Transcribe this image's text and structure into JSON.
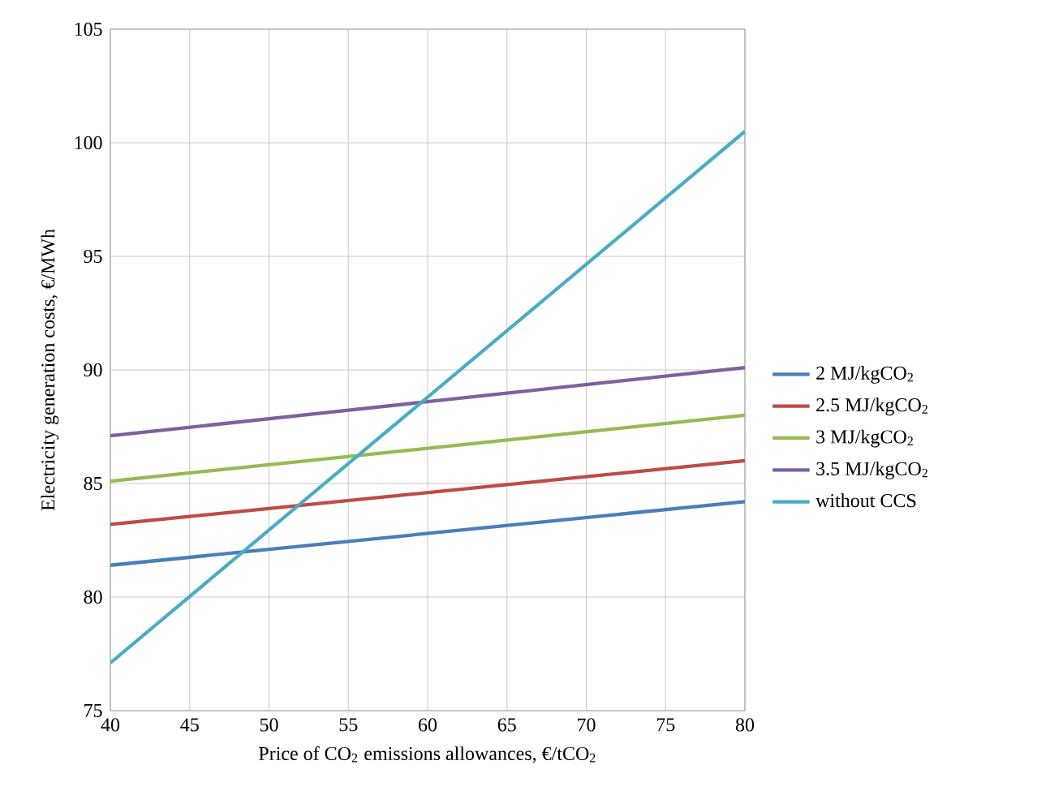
{
  "chart_data": {
    "type": "line",
    "xlabel": "Price of CO$_{2}$ emissions allowances, €/tCO$_{2}$",
    "ylabel": "Electricity generation costs, €/MWh",
    "x": [
      40,
      80
    ],
    "series": [
      {
        "name": "2 MJ/kgCO$_{2}$",
        "color": "#4a7ebb",
        "values": [
          81.4,
          84.2
        ]
      },
      {
        "name": "2.5 MJ/kgCO$_{2}$",
        "color": "#be4b48",
        "values": [
          83.2,
          86.0
        ]
      },
      {
        "name": "3 MJ/kgCO$_{2}$",
        "color": "#98b954",
        "values": [
          85.1,
          88.0
        ]
      },
      {
        "name": "3.5 MJ/kgCO$_{2}$",
        "color": "#7d60a0",
        "values": [
          87.1,
          90.1
        ]
      },
      {
        "name": "without CCS",
        "color": "#4bacc6",
        "values": [
          77.1,
          100.5
        ]
      }
    ],
    "xlim": [
      40,
      80
    ],
    "xticks": [
      40,
      45,
      50,
      55,
      60,
      65,
      70,
      75,
      80
    ],
    "ylim": [
      75,
      105
    ],
    "yticks": [
      75,
      80,
      85,
      90,
      95,
      100,
      105
    ],
    "grid": true,
    "legend": "right",
    "marker": "none",
    "line_style": "solid"
  }
}
